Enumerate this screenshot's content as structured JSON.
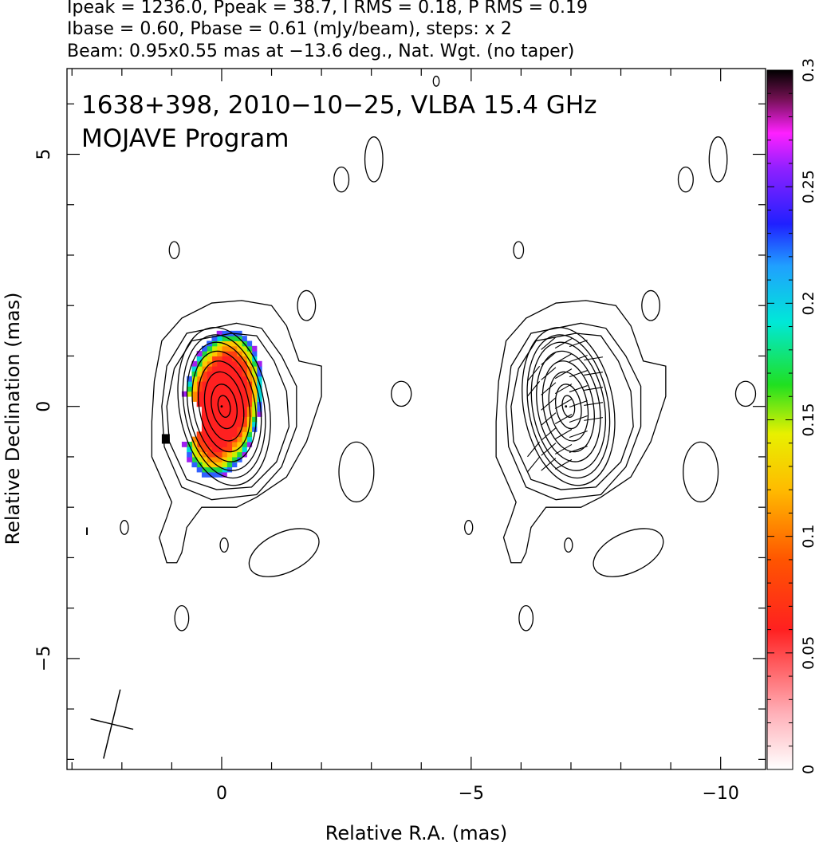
{
  "header": {
    "line1": "Ipeak = 1236.0, Ppeak = 38.7, I RMS = 0.18, P RMS = 0.19",
    "line2": "Ibase = 0.60, Pbase = 0.61 (mJy/beam), steps: x 2",
    "line3": "Beam: 0.95x0.55 mas at −13.6 deg., Nat. Wgt. (no taper)"
  },
  "chart_data": {
    "type": "heatmap",
    "title": "1638+398, 2010−10−25, VLBA 15.4 GHz",
    "subtitle": "MOJAVE Program",
    "xlabel": "Relative R.A. (mas)",
    "ylabel": "Relative Declination (mas)",
    "xlim": [
      3.1,
      -10.9
    ],
    "ylim": [
      -7.2,
      6.7
    ],
    "xticks": [
      {
        "value": 0,
        "label": "0"
      },
      {
        "value": -5,
        "label": "−5"
      },
      {
        "value": -10,
        "label": "−10"
      }
    ],
    "yticks": [
      {
        "value": 5,
        "label": "5"
      },
      {
        "value": 0,
        "label": "0"
      },
      {
        "value": -5,
        "label": "−5"
      }
    ],
    "colorbar": {
      "range": [
        0,
        0.3
      ],
      "ticks": [
        {
          "value": 0,
          "label": "0"
        },
        {
          "value": 0.05,
          "label": "0.05"
        },
        {
          "value": 0.1,
          "label": "0.1"
        },
        {
          "value": 0.15,
          "label": "0.15"
        },
        {
          "value": 0.2,
          "label": "0.2"
        },
        {
          "value": 0.25,
          "label": "0.25"
        },
        {
          "value": 0.3,
          "label": "0.3"
        }
      ]
    },
    "panels": [
      {
        "name": "left",
        "center": [
          0,
          0
        ]
      },
      {
        "name": "right",
        "center": [
          -6.9,
          0
        ]
      }
    ],
    "beam": {
      "major": 0.95,
      "minor": 0.55,
      "pa_deg": -13.6,
      "position": "bottom-left"
    },
    "core_contours": [
      {
        "rx": 0.12,
        "ry": 0.22
      },
      {
        "rx": 0.25,
        "ry": 0.45
      },
      {
        "rx": 0.38,
        "ry": 0.7
      },
      {
        "rx": 0.5,
        "ry": 0.92
      },
      {
        "rx": 0.62,
        "ry": 1.12
      },
      {
        "rx": 0.72,
        "ry": 1.3
      },
      {
        "rx": 0.8,
        "ry": 1.45
      },
      {
        "rx": 0.9,
        "ry": 1.6
      }
    ],
    "outer_contours": [
      [
        [
          -0.4,
          2.1
        ],
        [
          -1.0,
          2.0
        ],
        [
          -1.3,
          1.6
        ],
        [
          -1.55,
          0.9
        ],
        [
          -2.0,
          0.8
        ],
        [
          -2.0,
          0.2
        ],
        [
          -1.7,
          -0.7
        ],
        [
          -1.3,
          -1.4
        ],
        [
          -0.7,
          -1.8
        ],
        [
          -0.3,
          -2.0
        ],
        [
          0.4,
          -2.0
        ],
        [
          0.7,
          -2.4
        ],
        [
          0.8,
          -2.9
        ],
        [
          0.9,
          -3.1
        ],
        [
          1.1,
          -3.1
        ],
        [
          1.25,
          -2.6
        ],
        [
          1.1,
          -2.2
        ],
        [
          1.0,
          -1.9
        ],
        [
          1.4,
          -1.0
        ],
        [
          1.4,
          -0.3
        ],
        [
          1.35,
          0.5
        ],
        [
          1.2,
          1.3
        ],
        [
          0.8,
          1.75
        ],
        [
          0.2,
          2.05
        ]
      ],
      [
        [
          -0.3,
          1.65
        ],
        [
          -0.8,
          1.55
        ],
        [
          -1.2,
          1.0
        ],
        [
          -1.5,
          0.4
        ],
        [
          -1.5,
          -0.4
        ],
        [
          -1.2,
          -1.2
        ],
        [
          -0.7,
          -1.75
        ],
        [
          0.2,
          -1.85
        ],
        [
          0.8,
          -1.6
        ],
        [
          1.15,
          -0.8
        ],
        [
          1.2,
          0.0
        ],
        [
          1.1,
          0.8
        ],
        [
          0.7,
          1.45
        ]
      ],
      [
        [
          -0.2,
          1.45
        ],
        [
          -0.7,
          1.4
        ],
        [
          -1.05,
          0.9
        ],
        [
          -1.3,
          0.3
        ],
        [
          -1.35,
          -0.4
        ],
        [
          -1.1,
          -1.1
        ],
        [
          -0.6,
          -1.6
        ],
        [
          0.1,
          -1.65
        ],
        [
          0.7,
          -1.45
        ],
        [
          1.05,
          -0.7
        ],
        [
          1.1,
          0.0
        ],
        [
          0.95,
          0.75
        ],
        [
          0.6,
          1.3
        ]
      ]
    ],
    "islands": [
      {
        "x": -2.7,
        "y": -1.3,
        "rx": 0.35,
        "ry": 0.6
      },
      {
        "x": -1.7,
        "y": 2.0,
        "rx": 0.18,
        "ry": 0.3
      },
      {
        "x": -3.6,
        "y": 0.25,
        "rx": 0.2,
        "ry": 0.25
      },
      {
        "x": 0.95,
        "y": 3.1,
        "rx": 0.1,
        "ry": 0.17
      },
      {
        "x": 1.95,
        "y": -2.4,
        "rx": 0.08,
        "ry": 0.14
      },
      {
        "x": -0.05,
        "y": -2.75,
        "rx": 0.08,
        "ry": 0.14
      },
      {
        "x": 0.8,
        "y": -4.2,
        "rx": 0.14,
        "ry": 0.25
      },
      {
        "x": -3.05,
        "y": 4.9,
        "rx": 0.18,
        "ry": 0.45
      },
      {
        "x": -2.4,
        "y": 4.5,
        "rx": 0.15,
        "ry": 0.25
      },
      {
        "x": -4.3,
        "y": 6.45,
        "rx": 0.06,
        "ry": 0.1
      }
    ],
    "lopes": [
      {
        "x": -1.25,
        "y": -2.9,
        "rx": 0.75,
        "ry": 0.4,
        "rot": -25
      }
    ],
    "polarization_model": {
      "center": [
        0.05,
        0.0
      ],
      "rx": 0.78,
      "ry": 1.5,
      "rot_deg": -10,
      "notch": [
        0.9,
        -0.3,
        0.35
      ]
    }
  }
}
